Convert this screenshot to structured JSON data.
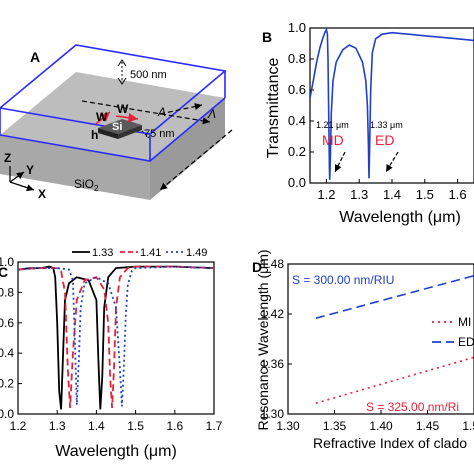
{
  "panelA": {
    "letter": "A",
    "dim_500": "500 nm",
    "dim_75": "75 nm",
    "label_si": "Si",
    "label_W1": "W",
    "label_W2": "W",
    "label_h": "h",
    "label_L1": "Λ",
    "label_L2": "Λ",
    "label_sio2": "SiO",
    "label_sio2_sub": "2",
    "axis_z": "Z",
    "axis_y": "Y",
    "axis_x": "X"
  },
  "colors": {
    "black": "#000000",
    "red": "#e8213a",
    "blue": "#2040c8",
    "slab": "#bdbdbd",
    "slab_side": "#9a9a9a"
  },
  "chart_data": [
    {
      "panel": "B",
      "type": "line",
      "xlabel": "Wavelength (μm)",
      "ylabel": "Transmittance",
      "xlim": [
        1.15,
        1.65
      ],
      "ylim": [
        0.0,
        1.0
      ],
      "xticks": [
        "1.2",
        "1.3",
        "1.4",
        "1.5",
        "1.6"
      ],
      "yticks": [
        "0.0",
        "0.2",
        "0.4",
        "0.6",
        "0.8",
        "1.0"
      ],
      "series": [
        {
          "color": "#2040c8",
          "x": [
            1.15,
            1.16,
            1.17,
            1.18,
            1.19,
            1.195,
            1.2,
            1.203,
            1.205,
            1.207,
            1.209,
            1.21,
            1.212,
            1.215,
            1.22,
            1.23,
            1.25,
            1.27,
            1.29,
            1.31,
            1.32,
            1.325,
            1.328,
            1.33,
            1.332,
            1.335,
            1.34,
            1.35,
            1.37,
            1.4,
            1.45,
            1.5,
            1.55,
            1.6,
            1.65
          ],
          "y": [
            0.55,
            0.66,
            0.78,
            0.87,
            0.94,
            0.97,
            0.99,
            0.96,
            0.8,
            0.45,
            0.1,
            0.02,
            0.15,
            0.45,
            0.66,
            0.78,
            0.86,
            0.89,
            0.87,
            0.78,
            0.66,
            0.5,
            0.25,
            0.03,
            0.25,
            0.6,
            0.84,
            0.93,
            0.96,
            0.97,
            0.96,
            0.95,
            0.94,
            0.93,
            0.92
          ]
        }
      ],
      "annotations": [
        {
          "text": "1.21 μm",
          "label": "MD",
          "x": 1.21
        },
        {
          "text": "1.33 μm",
          "label": "ED",
          "x": 1.33
        }
      ]
    },
    {
      "panel": "C",
      "type": "line",
      "xlabel": "Wavelength (μm)",
      "ylabel": "",
      "xlim": [
        1.2,
        1.7
      ],
      "ylim": [
        0.0,
        1.0
      ],
      "xticks": [
        "1.2",
        "1.3",
        "1.4",
        "1.5",
        "1.6",
        "1.7"
      ],
      "yticks": [
        "0.0",
        "0.2",
        "0.4",
        "0.6",
        "0.8",
        "1.0"
      ],
      "series": [
        {
          "name": "1.33",
          "color": "#000000",
          "x": [
            1.2,
            1.23,
            1.26,
            1.28,
            1.29,
            1.295,
            1.3,
            1.305,
            1.31,
            1.315,
            1.32,
            1.33,
            1.35,
            1.38,
            1.4,
            1.405,
            1.41,
            1.415,
            1.42,
            1.43,
            1.45,
            1.5,
            1.6,
            1.7
          ],
          "y": [
            0.95,
            0.96,
            0.96,
            0.97,
            0.96,
            0.9,
            0.6,
            0.15,
            0.03,
            0.4,
            0.75,
            0.86,
            0.9,
            0.88,
            0.75,
            0.35,
            0.03,
            0.25,
            0.7,
            0.9,
            0.96,
            0.97,
            0.97,
            0.96
          ]
        },
        {
          "name": "1.41",
          "color": "#e8213a",
          "dash": "7,4",
          "x": [
            1.2,
            1.25,
            1.3,
            1.31,
            1.32,
            1.327,
            1.333,
            1.34,
            1.35,
            1.37,
            1.4,
            1.42,
            1.43,
            1.435,
            1.44,
            1.445,
            1.45,
            1.46,
            1.48,
            1.5,
            1.6,
            1.7
          ],
          "y": [
            0.95,
            0.96,
            0.96,
            0.94,
            0.8,
            0.3,
            0.04,
            0.4,
            0.75,
            0.88,
            0.9,
            0.82,
            0.6,
            0.25,
            0.04,
            0.3,
            0.7,
            0.9,
            0.96,
            0.97,
            0.97,
            0.96
          ]
        },
        {
          "name": "1.49",
          "color": "#2040c8",
          "dash": "2,3",
          "x": [
            1.2,
            1.25,
            1.3,
            1.33,
            1.34,
            1.345,
            1.35,
            1.355,
            1.36,
            1.37,
            1.4,
            1.43,
            1.45,
            1.46,
            1.465,
            1.47,
            1.475,
            1.48,
            1.49,
            1.5,
            1.6,
            1.7
          ],
          "y": [
            0.95,
            0.96,
            0.96,
            0.95,
            0.88,
            0.5,
            0.06,
            0.35,
            0.7,
            0.86,
            0.9,
            0.86,
            0.7,
            0.3,
            0.05,
            0.3,
            0.65,
            0.85,
            0.94,
            0.96,
            0.97,
            0.96
          ]
        }
      ]
    },
    {
      "panel": "D",
      "type": "line",
      "xlabel": "Refractive Index of clado",
      "ylabel": "Resonance Wavelength (μm)",
      "xlim": [
        1.3,
        1.5
      ],
      "ylim": [
        1.3,
        1.48
      ],
      "xticks": [
        "1.30",
        "1.35",
        "1.40",
        "1.45",
        "1.50"
      ],
      "yticks": [
        "1.30",
        "1.36",
        "1.42",
        "1.48"
      ],
      "series": [
        {
          "name": "MI",
          "color": "#e8213a",
          "dash": "2,4",
          "x": [
            1.33,
            1.5
          ],
          "y": [
            1.313,
            1.368
          ]
        },
        {
          "name": "ED",
          "color": "#2040c8",
          "dash": "9,5",
          "x": [
            1.33,
            1.5
          ],
          "y": [
            1.415,
            1.466
          ]
        }
      ],
      "annotations": [
        {
          "text": "S = 300.00 nm/RIU",
          "color": "#2040c8"
        },
        {
          "text": "S = 325.00 nm/Ri",
          "color": "#e8213a"
        }
      ]
    }
  ]
}
